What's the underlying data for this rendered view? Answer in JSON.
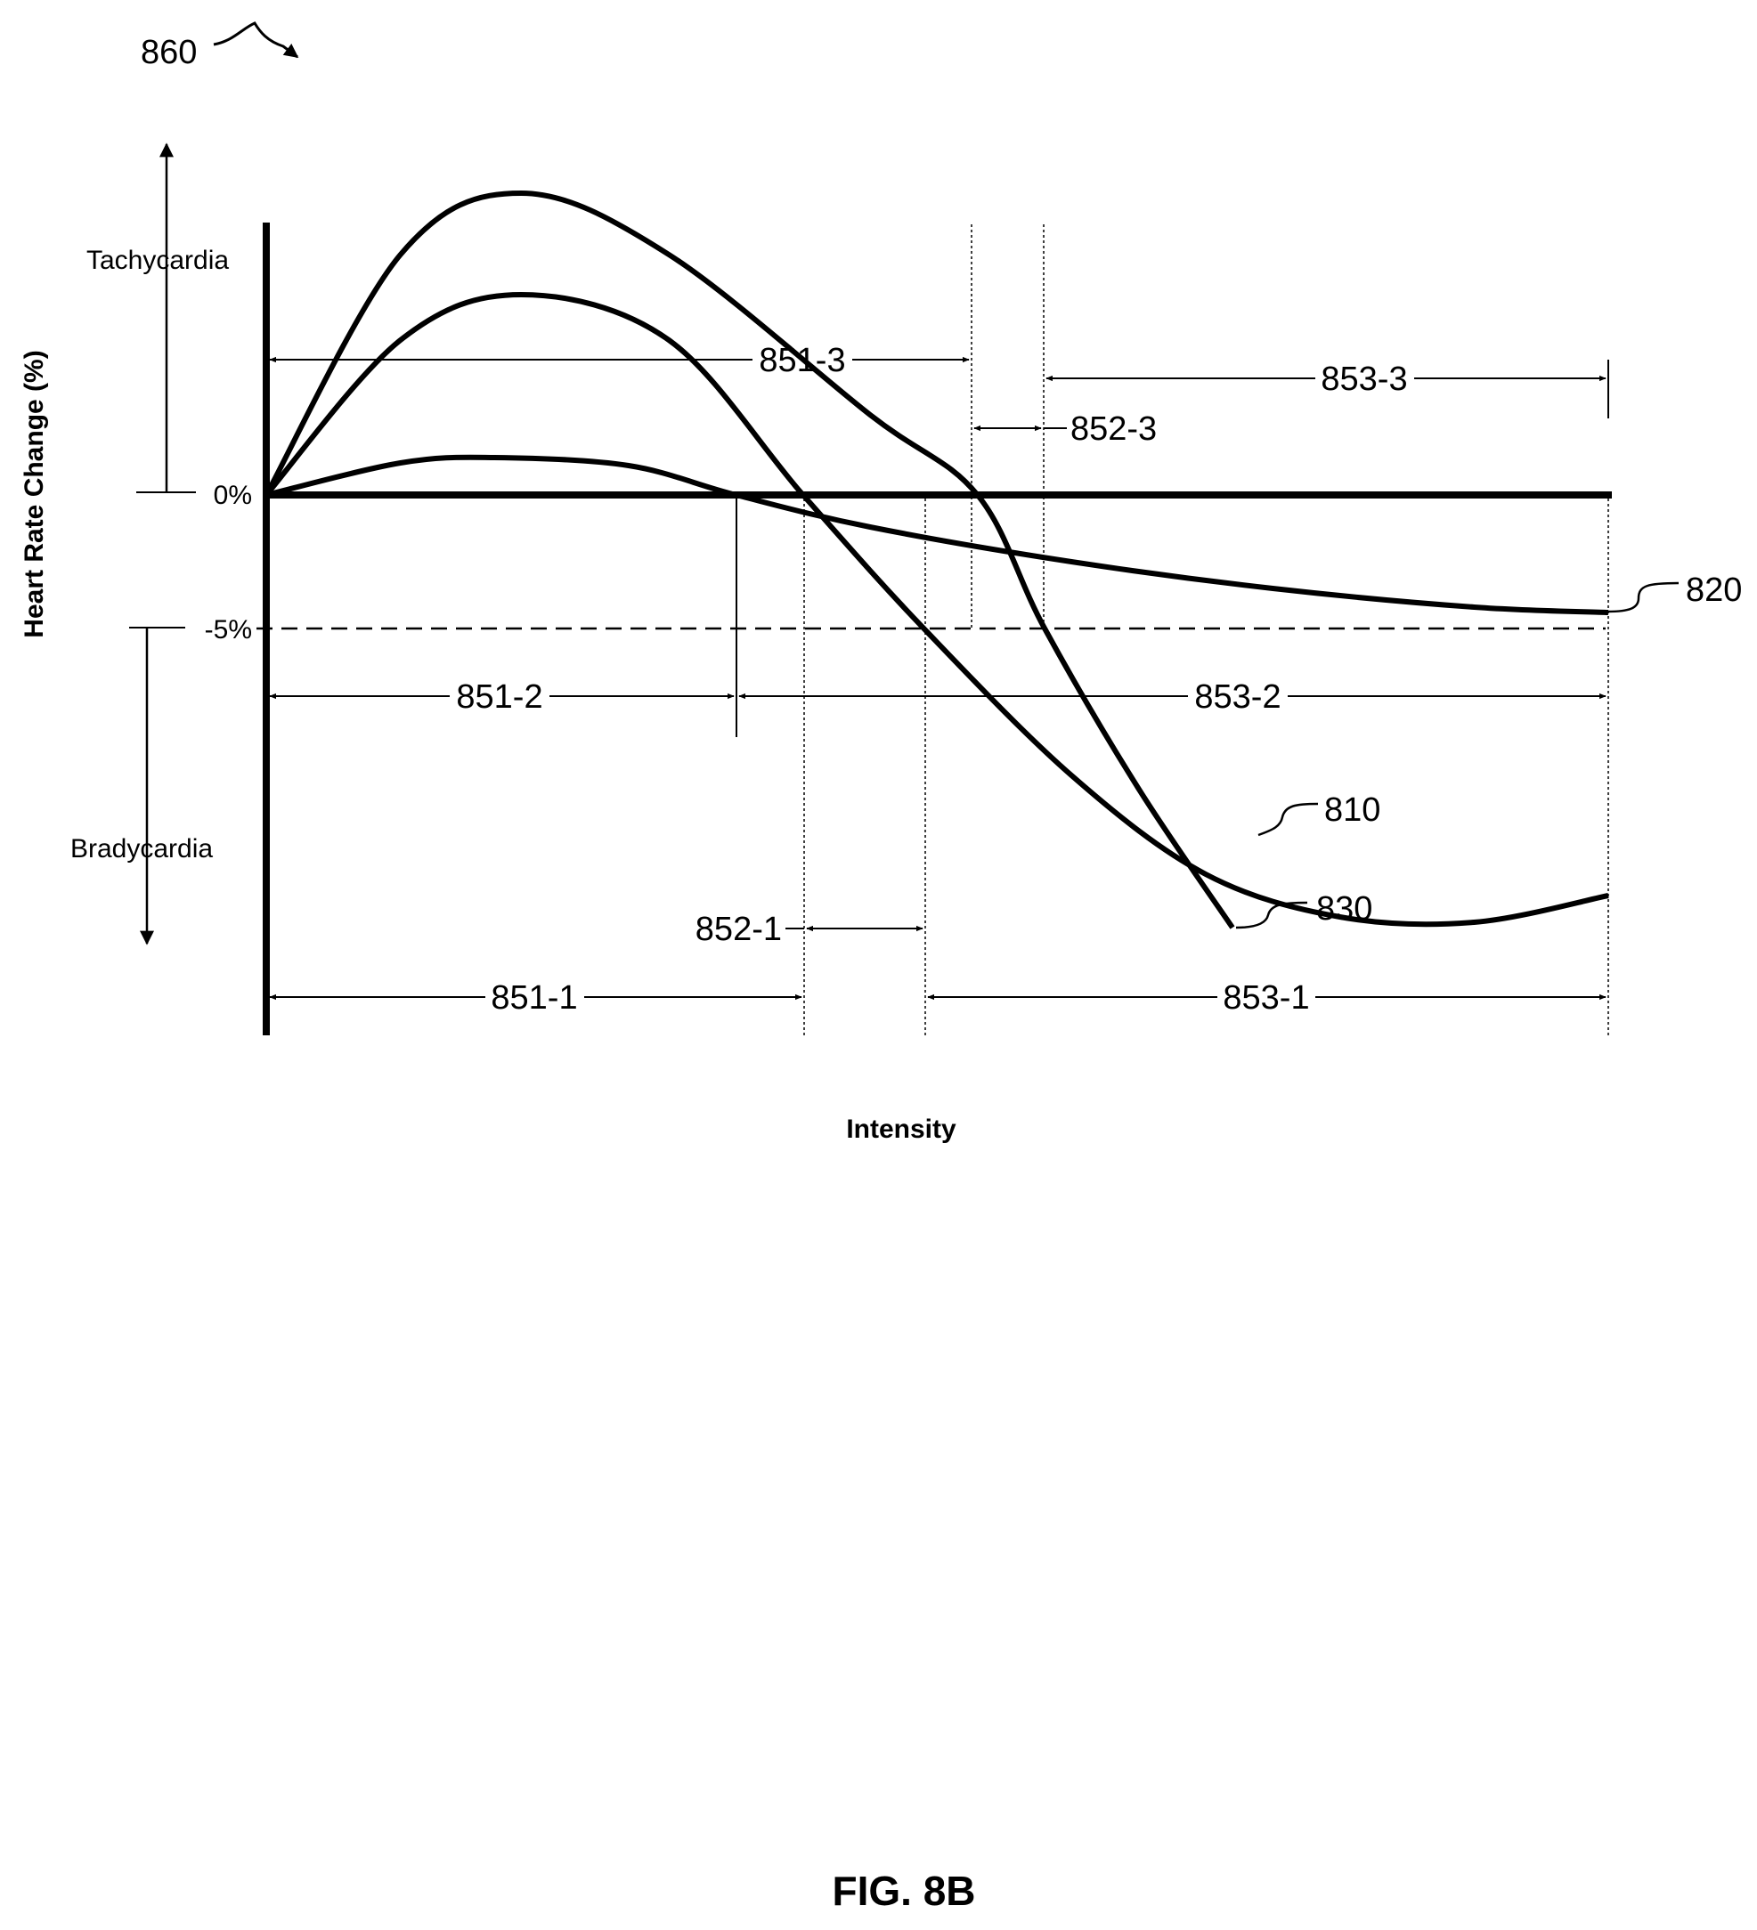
{
  "figure_ref": "860",
  "caption": "FIG. 8B",
  "chart_data": {
    "type": "line",
    "title": "",
    "xlabel": "Intensity",
    "ylabel": "Heart Rate Change (%)",
    "y_direction_labels": {
      "up": "Tachycardia",
      "down": "Bradycardia"
    },
    "y_ticks": [
      {
        "value": 0,
        "label": "0%"
      },
      {
        "value": -5,
        "label": "-5%"
      }
    ],
    "xlim": [
      0,
      100
    ],
    "ylim": [
      -20,
      11
    ],
    "grid": false,
    "legend": "none",
    "series": [
      {
        "name": "810",
        "points": [
          [
            0,
            0
          ],
          [
            10,
            5.8
          ],
          [
            19,
            7.5
          ],
          [
            30,
            5.8
          ],
          [
            40,
            0
          ],
          [
            49,
            -5
          ],
          [
            60,
            -10.5
          ],
          [
            70,
            -14.2
          ],
          [
            80,
            -15.8
          ],
          [
            90,
            -16
          ],
          [
            100,
            -15
          ]
        ]
      },
      {
        "name": "820",
        "points": [
          [
            0,
            0
          ],
          [
            10,
            1.2
          ],
          [
            17,
            1.4
          ],
          [
            27,
            1.1
          ],
          [
            35,
            0
          ],
          [
            45,
            -1.2
          ],
          [
            60,
            -2.5
          ],
          [
            75,
            -3.5
          ],
          [
            90,
            -4.2
          ],
          [
            100,
            -4.4
          ]
        ]
      },
      {
        "name": "830",
        "points": [
          [
            0,
            0
          ],
          [
            10,
            9
          ],
          [
            19,
            11.3
          ],
          [
            30,
            9
          ],
          [
            45,
            3
          ],
          [
            53,
            0
          ],
          [
            58,
            -5
          ],
          [
            65,
            -11
          ],
          [
            72,
            -16.2
          ]
        ]
      }
    ],
    "threshold_line": {
      "value": -5,
      "style": "dashed"
    },
    "intervals": [
      {
        "label": "851-1",
        "from": 0,
        "to": 40
      },
      {
        "label": "852-1",
        "from": 40,
        "to": 49
      },
      {
        "label": "853-1",
        "from": 49,
        "to": 100
      },
      {
        "label": "851-2",
        "from": 0,
        "to": 35
      },
      {
        "label": "853-2",
        "from": 35,
        "to": 100
      },
      {
        "label": "851-3",
        "from": 0,
        "to": 53
      },
      {
        "label": "852-3",
        "from": 53,
        "to": 58
      },
      {
        "label": "853-3",
        "from": 58,
        "to": 100
      }
    ]
  }
}
